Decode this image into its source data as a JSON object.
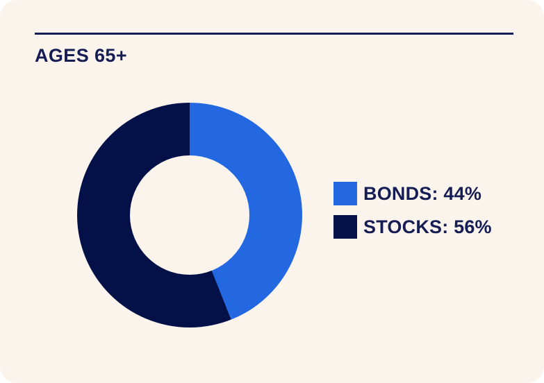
{
  "card": {
    "title": "AGES 65+"
  },
  "legend": {
    "items": [
      {
        "label": "BONDS: 44%"
      },
      {
        "label": "STOCKS: 56%"
      }
    ]
  },
  "colors": {
    "bonds_blue": "#2368E1",
    "stocks_navy": "#041149",
    "card_background": "#FAF4EC",
    "text_navy": "#161D54",
    "rule_navy": "#141C55"
  },
  "chart_data": {
    "type": "pie",
    "subtype": "donut",
    "title": "AGES 65+",
    "labels": [
      "BONDS",
      "STOCKS"
    ],
    "values": [
      44,
      56
    ],
    "value_unit": "%",
    "colors": [
      "#2368E1",
      "#041149"
    ],
    "start_angle_deg": 0,
    "direction": "clockwise",
    "inner_radius_ratio": 0.53,
    "legend_position": "right",
    "legend_labels": [
      "BONDS: 44%",
      "STOCKS: 56%"
    ]
  }
}
